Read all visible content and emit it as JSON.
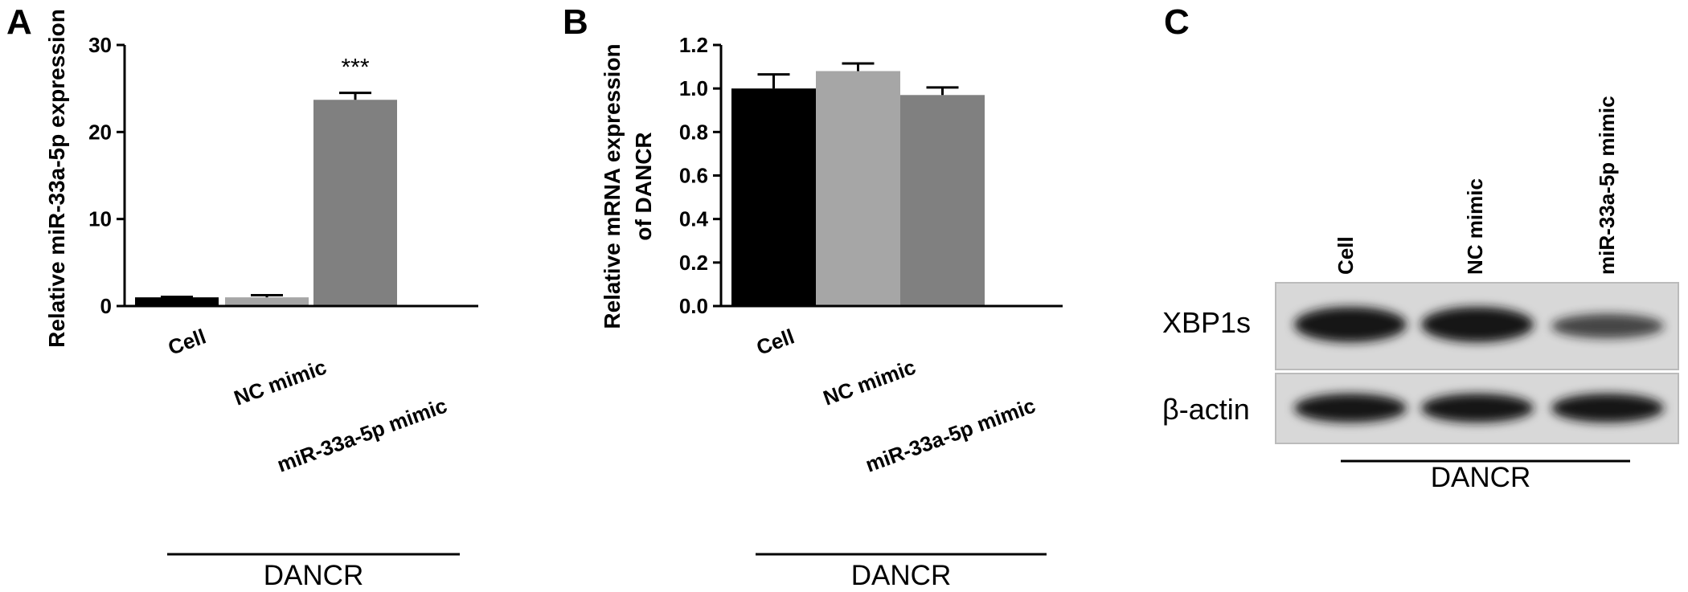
{
  "panels": {
    "a": "A",
    "b": "B",
    "c": "C"
  },
  "chart_data": [
    {
      "type": "bar",
      "panel": "A",
      "title": "",
      "xlabel": "",
      "ylabel": "Relative miR-33a-5p expression",
      "categories": [
        "Cell",
        "NC mimic",
        "miR-33a-5p mimic"
      ],
      "values": [
        1.0,
        1.0,
        23.7
      ],
      "errors": [
        0.05,
        0.25,
        0.8
      ],
      "annotations": [
        "",
        "",
        "***"
      ],
      "ylim": [
        0,
        30
      ],
      "yticks": [
        0,
        10,
        20,
        30
      ],
      "colors": [
        "#000000",
        "#a6a6a6",
        "#808080"
      ],
      "group_label": "DANCR",
      "grid": false
    },
    {
      "type": "bar",
      "panel": "B",
      "title": "",
      "xlabel": "",
      "ylabel_lines": [
        "Relative mRNA expression",
        "of DANCR"
      ],
      "categories": [
        "Cell",
        "NC mimic",
        "miR-33a-5p mimic"
      ],
      "values": [
        1.0,
        1.08,
        0.97
      ],
      "errors": [
        0.065,
        0.035,
        0.035
      ],
      "annotations": [
        "",
        "",
        ""
      ],
      "ylim": [
        0,
        1.2
      ],
      "yticks": [
        0.0,
        0.2,
        0.4,
        0.6,
        0.8,
        1.0,
        1.2
      ],
      "ytick_labels": [
        "0.0",
        "0.2",
        "0.4",
        "0.6",
        "0.8",
        "1.0",
        "1.2"
      ],
      "colors": [
        "#000000",
        "#a6a6a6",
        "#808080"
      ],
      "group_label": "DANCR",
      "grid": false
    }
  ],
  "blot": {
    "lanes": [
      "Cell",
      "NC mimic",
      "miR-33a-5p mimic"
    ],
    "rows": [
      {
        "label": "XBP1s",
        "intensity": [
          1.0,
          1.0,
          0.45
        ]
      },
      {
        "label": "β-actin",
        "intensity": [
          1.0,
          1.0,
          1.0
        ]
      }
    ],
    "group_label": "DANCR"
  }
}
